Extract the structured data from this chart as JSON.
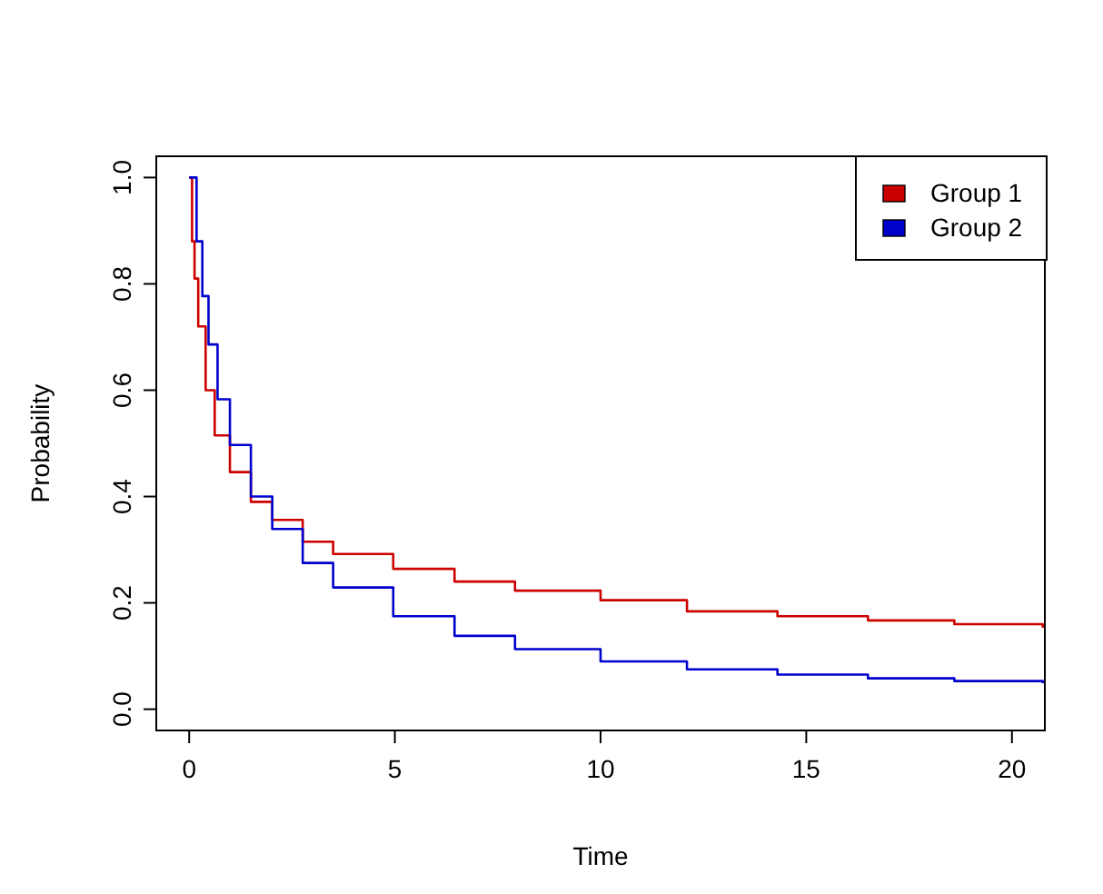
{
  "chart_data": {
    "type": "step",
    "xlabel": "Time",
    "ylabel": "Probability",
    "xlim": [
      -0.8,
      20.8
    ],
    "ylim": [
      -0.04,
      1.04
    ],
    "xticks": [
      0,
      5,
      10,
      15,
      20
    ],
    "yticks": [
      {
        "value": 0,
        "label": "0.0"
      },
      {
        "value": 0.2,
        "label": "0.2"
      },
      {
        "value": 0.4,
        "label": "0.4"
      },
      {
        "value": 0.6,
        "label": "0.6"
      },
      {
        "value": 0.8,
        "label": "0.8"
      },
      {
        "value": 1,
        "label": "1.0"
      }
    ],
    "grid": false,
    "legend": "top right",
    "marker": "none",
    "line_style": "solid",
    "series": [
      {
        "name": "Group 1",
        "color": "#cd0000",
        "x": [
          0,
          0.07,
          0.13,
          0.22,
          0.4,
          0.62,
          0.99,
          1.5,
          2.02,
          2.76,
          3.5,
          4.96,
          6.45,
          7.92,
          10,
          12.1,
          14.3,
          16.5,
          18.6,
          20.75
        ],
        "values": [
          1,
          0.88,
          0.81,
          0.72,
          0.6,
          0.515,
          0.446,
          0.39,
          0.356,
          0.315,
          0.292,
          0.264,
          0.24,
          0.223,
          0.205,
          0.184,
          0.175,
          0.167,
          0.16,
          0.153
        ]
      },
      {
        "name": "Group 2",
        "color": "#0000cd",
        "x": [
          0,
          0.18,
          0.32,
          0.47,
          0.69,
          0.99,
          1.5,
          2.02,
          2.76,
          3.5,
          4.96,
          6.45,
          7.92,
          10,
          12.1,
          14.3,
          16.5,
          18.6,
          20.75
        ],
        "values": [
          1,
          0.88,
          0.777,
          0.686,
          0.583,
          0.497,
          0.4,
          0.339,
          0.275,
          0.229,
          0.175,
          0.138,
          0.113,
          0.09,
          0.075,
          0.065,
          0.058,
          0.053,
          0.049
        ]
      }
    ]
  }
}
